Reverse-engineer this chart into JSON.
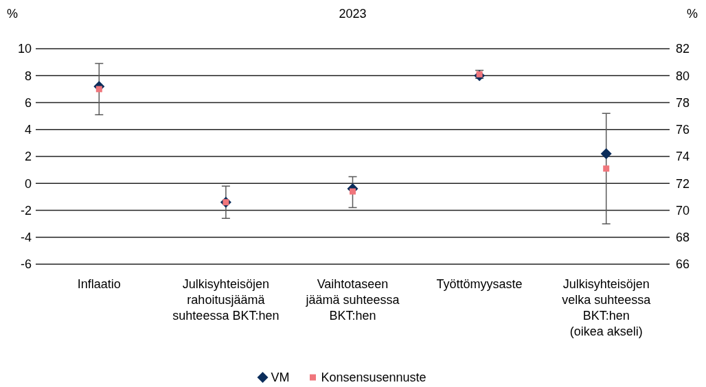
{
  "chart_data": {
    "type": "scatter",
    "title": "2023",
    "ylabel": "%",
    "y2label": "%",
    "categories": [
      "Inflaatio",
      "Julkisyhteisöjen rahoitusjäämä suhteessa BKT:hen",
      "Vaihtotaseen jäämä suhteessa BKT:hen",
      "Työttömyysaste",
      "Julkisyhteisöjen velka suhteessa BKT:hen (oikea akseli)"
    ],
    "ylim": [
      -6,
      10
    ],
    "yticks": [
      -6,
      -4,
      -2,
      0,
      2,
      4,
      6,
      8,
      10
    ],
    "y2lim": [
      66,
      82
    ],
    "y2ticks": [
      66,
      68,
      70,
      72,
      74,
      76,
      78,
      80,
      82
    ],
    "series": [
      {
        "name": "VM",
        "color": "#0b2d5b",
        "marker": "diamond",
        "values": [
          7.2,
          -1.4,
          -0.4,
          8.0,
          null
        ],
        "errors": [
          [
            5.1,
            8.9
          ],
          [
            -2.6,
            -0.2
          ],
          [
            -1.8,
            0.5
          ],
          [
            7.8,
            8.4
          ],
          null
        ]
      },
      {
        "name": "Konsensusennuste",
        "color": "#f0767c",
        "marker": "square",
        "values": [
          7.0,
          -1.4,
          -0.6,
          8.1,
          null
        ]
      },
      {
        "color": "#0b2d5b",
        "marker": "diamond",
        "axis": "y2",
        "values": [
          null,
          null,
          null,
          null,
          74.2
        ],
        "errors": [
          null,
          null,
          null,
          null,
          [
            69.0,
            77.2
          ]
        ]
      },
      {
        "color": "#f0767c",
        "marker": "square",
        "axis": "y2",
        "values": [
          null,
          null,
          null,
          null,
          73.1
        ]
      }
    ],
    "grid": "y",
    "legend": "bottom"
  }
}
